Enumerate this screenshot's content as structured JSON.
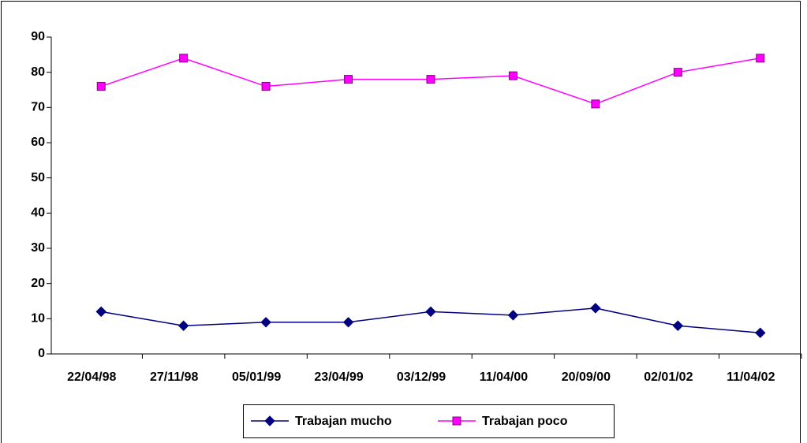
{
  "chart_data": {
    "type": "line",
    "categories": [
      "22/04/98",
      "27/11/98",
      "05/01/99",
      "23/04/99",
      "03/12/99",
      "11/04/00",
      "20/09/00",
      "02/01/02",
      "11/04/02"
    ],
    "series": [
      {
        "name": "Trabajan mucho",
        "color": "#000080",
        "marker": "diamond",
        "values": [
          12,
          8,
          9,
          9,
          12,
          11,
          13,
          8,
          6
        ]
      },
      {
        "name": "Trabajan poco",
        "color": "#ff00ff",
        "marker": "square",
        "values": [
          76,
          84,
          76,
          78,
          78,
          79,
          71,
          80,
          84
        ]
      }
    ],
    "ylim": [
      0,
      90
    ],
    "yticks": [
      0,
      10,
      20,
      30,
      40,
      50,
      60,
      70,
      80,
      90
    ],
    "grid": false,
    "legend": "bottom"
  }
}
